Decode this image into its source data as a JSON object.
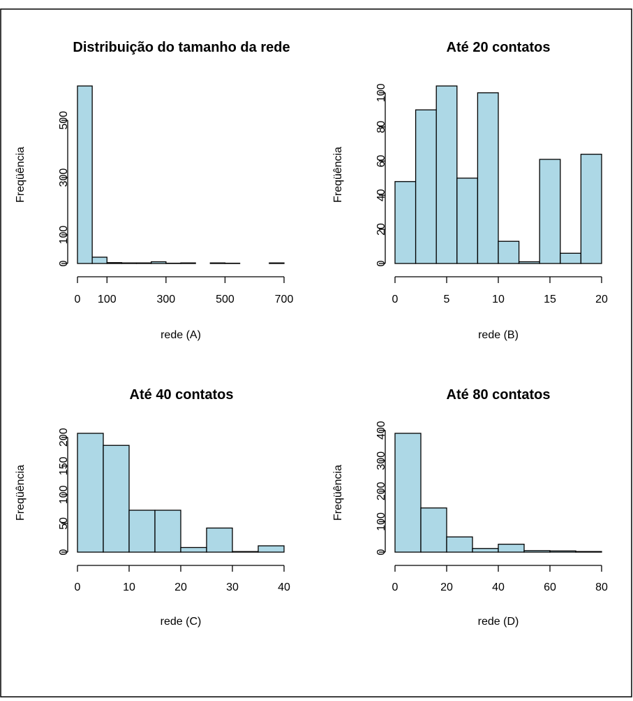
{
  "chart_data": [
    {
      "type": "bar",
      "title": "Distribuição do tamanho da rede",
      "xlabel": "rede (A)",
      "ylabel": "Freqüência",
      "bin_edges": [
        0,
        50,
        100,
        150,
        200,
        250,
        300,
        350,
        400,
        450,
        500,
        550,
        600,
        650,
        700
      ],
      "values": [
        620,
        22,
        3,
        2,
        2,
        6,
        1,
        2,
        0,
        2,
        1,
        0,
        0,
        2
      ],
      "xlim": [
        0,
        700
      ],
      "ylim": [
        0,
        620
      ],
      "xticks": [
        0,
        100,
        300,
        500,
        700
      ],
      "xtick_labels": [
        "0",
        "100",
        "300",
        "500",
        "700"
      ],
      "yticks": [
        0,
        100,
        300,
        500
      ],
      "ytick_labels": [
        "0",
        "100",
        "300",
        "500"
      ],
      "bar_color": "#add8e6",
      "grid": false
    },
    {
      "type": "bar",
      "title": "Até 20 contatos",
      "xlabel": "rede (B)",
      "ylabel": "Freqüência",
      "bin_edges": [
        0,
        2,
        4,
        6,
        8,
        10,
        12,
        14,
        16,
        18,
        20
      ],
      "values": [
        48,
        90,
        104,
        50,
        100,
        13,
        1,
        61,
        6,
        64
      ],
      "xlim": [
        0,
        20
      ],
      "ylim": [
        0,
        104
      ],
      "xticks": [
        0,
        5,
        10,
        15,
        20
      ],
      "xtick_labels": [
        "0",
        "5",
        "10",
        "15",
        "20"
      ],
      "yticks": [
        0,
        20,
        40,
        60,
        80,
        100
      ],
      "ytick_labels": [
        "0",
        "20",
        "40",
        "60",
        "80",
        "100"
      ],
      "bar_color": "#add8e6",
      "grid": false
    },
    {
      "type": "bar",
      "title": "Até 40 contatos",
      "xlabel": "rede (C)",
      "ylabel": "Freqüência",
      "bin_edges": [
        0,
        5,
        10,
        15,
        20,
        25,
        30,
        35,
        40
      ],
      "values": [
        207,
        186,
        73,
        73,
        8,
        42,
        1,
        11
      ],
      "xlim": [
        0,
        40
      ],
      "ylim": [
        0,
        207
      ],
      "xticks": [
        0,
        10,
        20,
        30,
        40
      ],
      "xtick_labels": [
        "0",
        "10",
        "20",
        "30",
        "40"
      ],
      "yticks": [
        0,
        50,
        100,
        150,
        200
      ],
      "ytick_labels": [
        "0",
        "50",
        "100",
        "150",
        "200"
      ],
      "bar_color": "#add8e6",
      "grid": false
    },
    {
      "type": "bar",
      "title": "Até 80 contatos",
      "xlabel": "rede (D)",
      "ylabel": "Freqüência",
      "bin_edges": [
        0,
        10,
        20,
        30,
        40,
        50,
        60,
        70,
        80
      ],
      "values": [
        390,
        145,
        50,
        12,
        26,
        5,
        4,
        2
      ],
      "xlim": [
        0,
        80
      ],
      "ylim": [
        0,
        390
      ],
      "xticks": [
        0,
        20,
        40,
        60,
        80
      ],
      "xtick_labels": [
        "0",
        "20",
        "40",
        "60",
        "80"
      ],
      "yticks": [
        0,
        100,
        200,
        300,
        400
      ],
      "ytick_labels": [
        "0",
        "100",
        "200",
        "300",
        "400"
      ],
      "bar_color": "#add8e6",
      "grid": false
    }
  ]
}
